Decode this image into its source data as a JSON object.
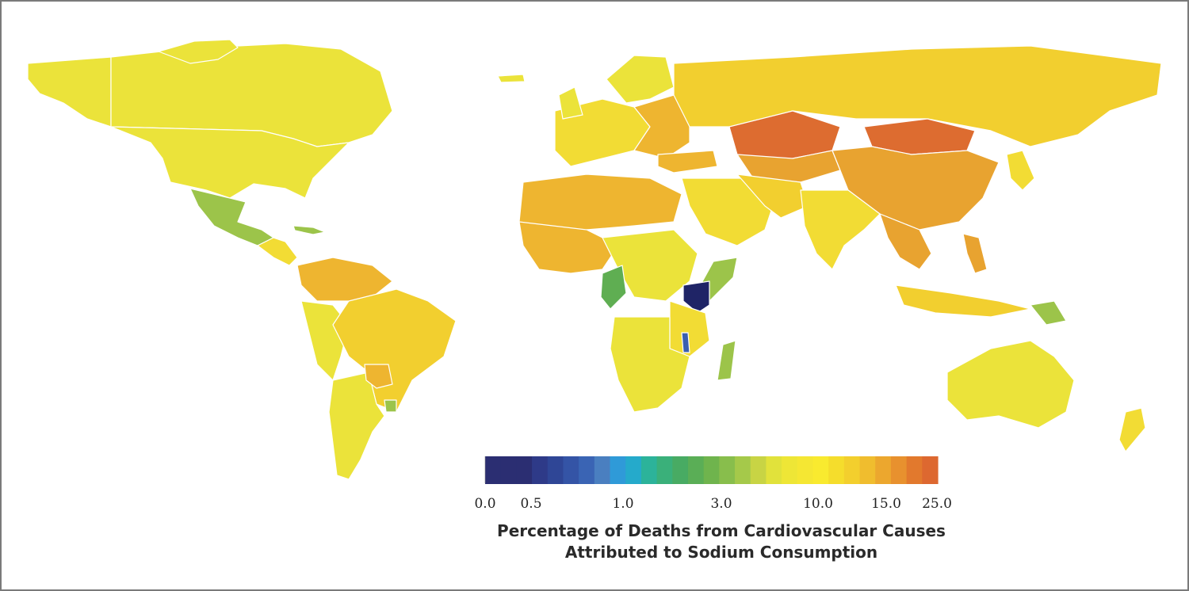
{
  "legend": {
    "title_line1": "Percentage of Deaths from Cardiovascular Causes",
    "title_line2": "Attributed to Sodium Consumption",
    "tick_labels": [
      "0.0",
      "0.5",
      "1.0",
      "3.0",
      "10.0",
      "15.0",
      "25.0"
    ],
    "colors": [
      "#2b2e72",
      "#2b2e72",
      "#2b2e72",
      "#2e3a88",
      "#2f4696",
      "#3454a6",
      "#3a64b4",
      "#4a7fc0",
      "#2f9ad8",
      "#25aacb",
      "#2cb39a",
      "#3ab07a",
      "#48ab63",
      "#5aae56",
      "#6fb44d",
      "#88be4c",
      "#a5c94a",
      "#c8d444",
      "#e1e23b",
      "#eee636",
      "#f5e733",
      "#f9ea2f",
      "#f5dd2c",
      "#f3cf2d",
      "#f0bd2e",
      "#eca72e",
      "#e8912e",
      "#e2792d",
      "#dd6830"
    ]
  },
  "map_colors": {
    "yellow_light": "#ebe33a",
    "yellow": "#f2dc34",
    "gold": "#f2cf2f",
    "orange_light": "#eeb530",
    "orange": "#e8a330",
    "orange_dark": "#dd6c30",
    "green": "#9cc44a",
    "green_dark": "#5fae52",
    "blue": "#3a5fb0",
    "navy": "#1f2466"
  }
}
